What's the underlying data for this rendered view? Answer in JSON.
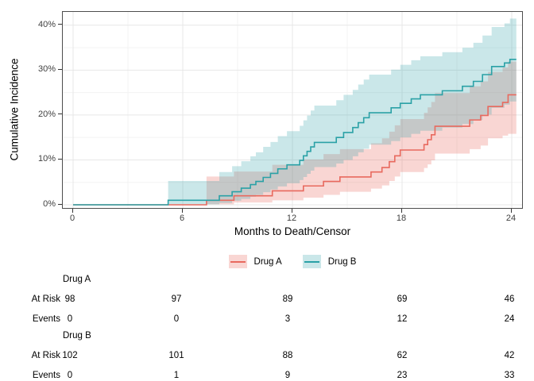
{
  "chart_data": {
    "type": "line",
    "subtype": "step-cumulative-incidence-with-ci-bands",
    "title": "",
    "xlabel": "Months to Death/Censor",
    "ylabel": "Cumulative Incidence",
    "xlim": [
      -0.6,
      24.6
    ],
    "ylim": [
      -1,
      43.2
    ],
    "grid": true,
    "legend_position": "bottom",
    "x_ticks": [
      {
        "value": 0,
        "label": "0"
      },
      {
        "value": 6,
        "label": "6"
      },
      {
        "value": 12,
        "label": "12"
      },
      {
        "value": 18,
        "label": "18"
      },
      {
        "value": 24,
        "label": "24"
      }
    ],
    "y_ticks": [
      {
        "value": 0,
        "label": "0%"
      },
      {
        "value": 10,
        "label": "10%"
      },
      {
        "value": 20,
        "label": "20%"
      },
      {
        "value": 30,
        "label": "30%"
      },
      {
        "value": 40,
        "label": "40%"
      }
    ],
    "x_minor": [
      3,
      9,
      15,
      21
    ],
    "y_minor": [
      5,
      15,
      25,
      35
    ],
    "t_end": 24.25,
    "series": [
      {
        "name": "Drug A",
        "color": "#e8695e",
        "band_color": "rgba(232,105,94,0.27)",
        "points_format": [
          "months",
          "estimate_pct",
          "ci_low_pct",
          "ci_high_pct"
        ],
        "points": [
          [
            0,
            0,
            0,
            0
          ],
          [
            7.3,
            1.0,
            0.1,
            6.3
          ],
          [
            8.8,
            2.0,
            0.5,
            7.4
          ],
          [
            10.9,
            3.1,
            1.0,
            8.9
          ],
          [
            12.6,
            4.2,
            1.6,
            10.1
          ],
          [
            13.7,
            5.2,
            2.2,
            11.3
          ],
          [
            14.6,
            6.2,
            2.9,
            12.4
          ],
          [
            16.3,
            7.3,
            3.6,
            13.7
          ],
          [
            16.9,
            8.3,
            4.3,
            14.8
          ],
          [
            17.3,
            9.6,
            5.3,
            16.3
          ],
          [
            17.6,
            10.9,
            6.3,
            17.7
          ],
          [
            17.9,
            12.2,
            7.3,
            19.1
          ],
          [
            19.2,
            13.4,
            8.2,
            20.5
          ],
          [
            19.4,
            14.5,
            9.0,
            21.7
          ],
          [
            19.6,
            15.6,
            9.9,
            22.9
          ],
          [
            19.8,
            17.5,
            11.4,
            24.9
          ],
          [
            21.7,
            18.9,
            12.4,
            26.4
          ],
          [
            22.3,
            19.9,
            13.2,
            27.5
          ],
          [
            22.7,
            21.9,
            14.8,
            29.6
          ],
          [
            23.5,
            22.8,
            15.4,
            30.6
          ],
          [
            23.8,
            24.5,
            15.8,
            31.9
          ]
        ]
      },
      {
        "name": "Drug B",
        "color": "#2aa1a6",
        "band_color": "rgba(42,161,166,0.25)",
        "points_format": [
          "months",
          "estimate_pct",
          "ci_low_pct",
          "ci_high_pct"
        ],
        "points": [
          [
            0,
            0,
            0,
            0
          ],
          [
            5.2,
            1.0,
            0.1,
            5.3
          ],
          [
            8.0,
            2.0,
            0.4,
            7.3
          ],
          [
            8.7,
            2.9,
            0.9,
            8.6
          ],
          [
            9.2,
            3.7,
            1.3,
            9.7
          ],
          [
            9.7,
            4.5,
            1.8,
            10.8
          ],
          [
            10.0,
            5.2,
            2.2,
            11.7
          ],
          [
            10.4,
            6.1,
            2.8,
            12.9
          ],
          [
            10.8,
            7.0,
            3.4,
            14.0
          ],
          [
            11.2,
            8.0,
            4.1,
            15.3
          ],
          [
            11.7,
            8.9,
            4.8,
            16.4
          ],
          [
            12.4,
            9.9,
            5.5,
            17.6
          ],
          [
            12.6,
            10.9,
            6.2,
            18.8
          ],
          [
            12.8,
            11.9,
            6.9,
            19.9
          ],
          [
            13.0,
            12.9,
            7.6,
            21.0
          ],
          [
            13.2,
            13.9,
            8.4,
            22.1
          ],
          [
            14.4,
            15.0,
            9.2,
            23.3
          ],
          [
            14.8,
            16.1,
            10.0,
            24.5
          ],
          [
            15.3,
            17.2,
            10.8,
            25.6
          ],
          [
            15.6,
            18.3,
            11.7,
            26.8
          ],
          [
            15.9,
            19.4,
            12.5,
            27.9
          ],
          [
            16.2,
            20.5,
            13.4,
            29.0
          ],
          [
            17.4,
            21.6,
            14.2,
            30.1
          ],
          [
            17.9,
            22.6,
            15.0,
            31.2
          ],
          [
            18.5,
            23.6,
            15.8,
            32.2
          ],
          [
            19.0,
            24.5,
            16.5,
            33.1
          ],
          [
            20.2,
            25.4,
            17.2,
            34.0
          ],
          [
            21.3,
            26.4,
            18.0,
            35.0
          ],
          [
            21.9,
            27.5,
            18.9,
            36.1
          ],
          [
            22.4,
            29.0,
            20.1,
            37.7
          ],
          [
            22.9,
            30.8,
            21.6,
            39.6
          ],
          [
            23.6,
            31.6,
            22.3,
            40.4
          ],
          [
            23.9,
            32.4,
            23.0,
            41.5
          ]
        ]
      }
    ]
  },
  "legend": {
    "items": [
      {
        "label": "Drug A"
      },
      {
        "label": "Drug B"
      }
    ]
  },
  "risk_table": {
    "time_points": [
      0,
      6,
      12,
      18,
      24
    ],
    "groups": [
      {
        "name": "Drug A",
        "rows": [
          {
            "label": "At Risk",
            "values": [
              "98",
              "97",
              "89",
              "69",
              "46"
            ]
          },
          {
            "label": "Events",
            "values": [
              "0",
              "0",
              "3",
              "12",
              "24"
            ]
          }
        ]
      },
      {
        "name": "Drug B",
        "rows": [
          {
            "label": "At Risk",
            "values": [
              "102",
              "101",
              "88",
              "62",
              "42"
            ]
          },
          {
            "label": "Events",
            "values": [
              "0",
              "1",
              "9",
              "23",
              "33"
            ]
          }
        ]
      }
    ]
  },
  "colors": {
    "drug_a_line": "#e8695e",
    "drug_b_line": "#2aa1a6",
    "grid_major": "#e7e7e7",
    "grid_minor": "#f3f3f3",
    "panel_border": "#4d4d4d",
    "tick_text": "#404040"
  }
}
